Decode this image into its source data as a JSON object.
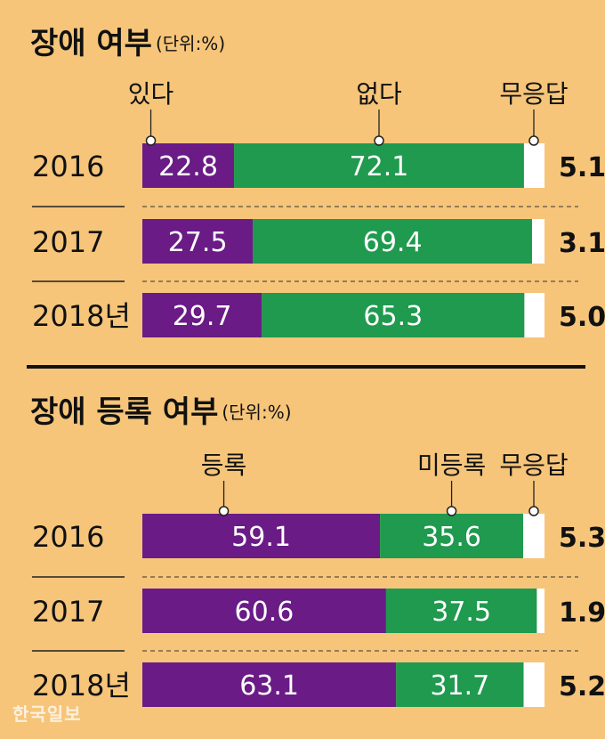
{
  "watermark": "한국일보",
  "colors": {
    "yes": "#6a1b86",
    "no": "#1f9a4e",
    "none": "#ffffff",
    "background": "#f6c57a"
  },
  "chart_data": [
    {
      "type": "bar",
      "stacked": true,
      "orientation": "horizontal",
      "title": "장애 여부",
      "unit_note": "(단위:%)",
      "categories": [
        "2016",
        "2017",
        "2018년"
      ],
      "series": [
        {
          "name": "있다",
          "values": [
            22.8,
            27.5,
            29.7
          ]
        },
        {
          "name": "없다",
          "values": [
            72.1,
            69.4,
            65.3
          ]
        },
        {
          "name": "무응답",
          "values": [
            5.1,
            3.1,
            5.0
          ]
        }
      ],
      "xlim": [
        0,
        100
      ],
      "value_labels": [
        [
          "22.8",
          "72.1",
          "5.1"
        ],
        [
          "27.5",
          "69.4",
          "3.1"
        ],
        [
          "29.7",
          "65.3",
          "5.0"
        ]
      ]
    },
    {
      "type": "bar",
      "stacked": true,
      "orientation": "horizontal",
      "title": "장애 등록 여부",
      "unit_note": "(단위:%)",
      "categories": [
        "2016",
        "2017",
        "2018년"
      ],
      "series": [
        {
          "name": "등록",
          "values": [
            59.1,
            60.6,
            63.1
          ]
        },
        {
          "name": "미등록",
          "values": [
            35.6,
            37.5,
            31.7
          ]
        },
        {
          "name": "무응답",
          "values": [
            5.3,
            1.9,
            5.2
          ]
        }
      ],
      "xlim": [
        0,
        100
      ],
      "value_labels": [
        [
          "59.1",
          "35.6",
          "5.3"
        ],
        [
          "60.6",
          "37.5",
          "1.9"
        ],
        [
          "63.1",
          "31.7",
          "5.2"
        ]
      ]
    }
  ]
}
